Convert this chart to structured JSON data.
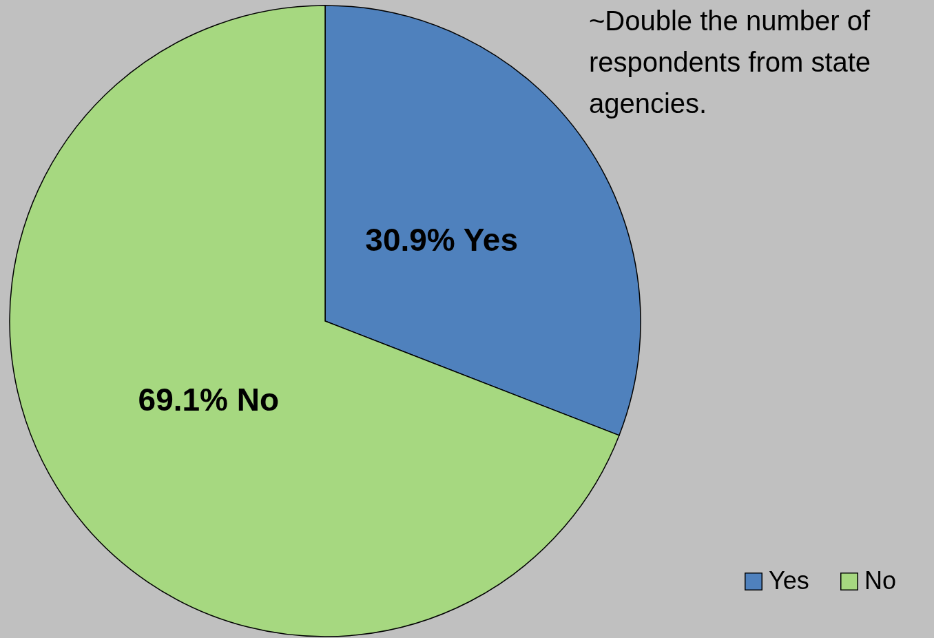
{
  "chart_data": {
    "type": "pie",
    "categories": [
      "Yes",
      "No"
    ],
    "values": [
      30.9,
      69.1
    ],
    "colors": [
      "#4f81bd",
      "#a6d880"
    ],
    "value_labels": [
      "30.9% Yes",
      "69.1% No"
    ],
    "annotations": [
      "~Double the number of respondents from state agencies."
    ],
    "legend": "bottom right"
  }
}
